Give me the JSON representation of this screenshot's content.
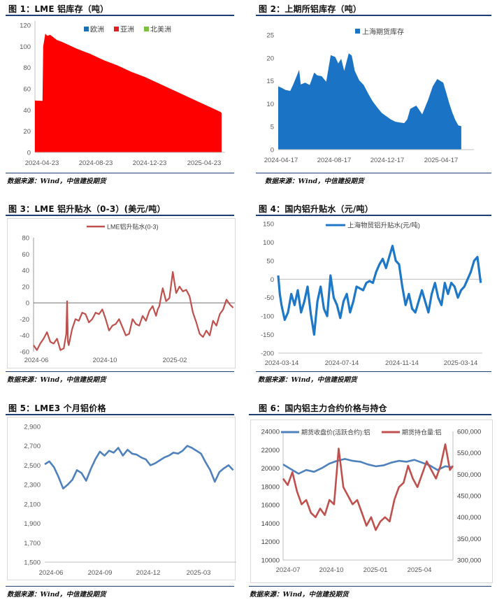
{
  "figures": {
    "fig1": {
      "title": "图 1：LME 铝库存（吨）",
      "source": "数据来源：Wind，中信建投期货"
    },
    "fig2": {
      "title": "图 2：上期所铝库存（吨）",
      "source": "数据来源：Wind，中信建投期货"
    },
    "fig3": {
      "title": "图 3：LME 铝升贴水（0-3）(美元/吨）",
      "source": "数据来源：Wind，中信建投期货"
    },
    "fig4": {
      "title": "图 4：国内铝升贴水（元/吨）",
      "source": "数据来源：Wind，中信建投期货"
    },
    "fig5": {
      "title": "图 5：LME3 个月铝价格",
      "source": "数据来源：Wind，中信建投期货"
    },
    "fig6": {
      "title": "图 6：国内铝主力合约价格与持仓",
      "source": "数据来源：Wind，中信建投期货"
    }
  },
  "chart_data": [
    {
      "id": "fig1",
      "type": "area",
      "title": "LME 铝库存（吨）",
      "legend": [
        "欧洲",
        "亚洲",
        "北美洲"
      ],
      "legend_colors": {
        "欧洲": "#1f6fb5",
        "亚洲": "#e02020",
        "北美洲": "#7cc242"
      },
      "yticks": [
        0,
        20,
        40,
        60,
        80,
        100,
        120
      ],
      "ylim": [
        0,
        120
      ],
      "xticks": [
        "2024-04-23",
        "2024-08-23",
        "2024-12-23",
        "2025-04-23"
      ],
      "xlim": [
        0,
        13.6
      ],
      "series": [
        {
          "name": "亚洲",
          "color": "#ff0000",
          "x": [
            0,
            0.55,
            0.6,
            0.75,
            0.9,
            1.1,
            1.3,
            1.6,
            2,
            2.5,
            3,
            4,
            5,
            6,
            7,
            8,
            9,
            10,
            11,
            12,
            13,
            13.5,
            13.55
          ],
          "values": [
            49,
            48.5,
            100,
            112,
            110,
            111,
            109,
            106,
            104,
            101,
            98,
            93,
            87,
            82,
            76,
            71,
            65,
            59,
            53,
            47,
            41,
            38,
            37
          ]
        }
      ]
    },
    {
      "id": "fig2",
      "type": "area",
      "title": "上期所铝库存（吨）",
      "legend": [
        "上海期货库存"
      ],
      "legend_colors": {
        "上海期货库存": "#1a73c5"
      },
      "yticks": [
        0,
        5,
        10,
        15,
        20,
        25
      ],
      "ylim": [
        0,
        25
      ],
      "xticks": [
        "2024-04-17",
        "2024-08-17",
        "2024-12-17",
        "2025-04-17"
      ],
      "xlim": [
        0,
        12.3
      ],
      "series": [
        {
          "name": "上海期货库存",
          "color": "#1a73c5",
          "x": [
            0,
            0.2,
            0.5,
            0.8,
            1.0,
            1.2,
            1.4,
            1.5,
            1.8,
            2.1,
            2.4,
            2.6,
            2.9,
            3.2,
            3.5,
            3.8,
            4,
            4.2,
            4.4,
            4.7,
            4.9,
            5.1,
            5.4,
            5.7,
            6,
            6.3,
            6.6,
            6.9,
            7.2,
            7.5,
            7.8,
            8.1,
            8.4,
            8.6,
            8.8,
            9.2,
            9.6,
            10,
            10.3,
            10.6,
            11,
            11.2,
            11.4,
            11.6,
            11.8,
            12,
            12.2
          ],
          "values": [
            13.8,
            13.5,
            13,
            12.8,
            14.2,
            15.8,
            17.4,
            14.2,
            14.6,
            14.1,
            16.8,
            16.2,
            16,
            14.8,
            20.6,
            20.2,
            18.8,
            19.8,
            17.2,
            21,
            20.5,
            17.2,
            15.1,
            14.1,
            12.2,
            10.5,
            9.2,
            8,
            7.3,
            6.6,
            6.1,
            5.9,
            5.8,
            6.6,
            8.9,
            9.6,
            7.7,
            10.9,
            13.8,
            15.4,
            14.6,
            12.4,
            10.1,
            8.1,
            6.5,
            5.3,
            5.1
          ]
        }
      ]
    },
    {
      "id": "fig3",
      "type": "line",
      "title": "LME 铝升贴水（0-3）(美元/吨）",
      "legend": [
        "LME铝升贴水(0-3)"
      ],
      "legend_colors": {
        "LME铝升贴水(0-3)": "#c0504d"
      },
      "yticks": [
        -60,
        -40,
        -20,
        0,
        20,
        40,
        60,
        80
      ],
      "ylim": [
        -60,
        80
      ],
      "xticks": [
        "2024-06",
        "2024-10",
        "2025-02"
      ],
      "xlim": [
        0,
        12
      ],
      "series": [
        {
          "name": "LME铝升贴水(0-3)",
          "color": "#c0504d",
          "x": [
            0,
            0.2,
            0.4,
            0.6,
            0.8,
            1.0,
            1.2,
            1.4,
            1.6,
            1.8,
            1.95,
            2.0,
            2.05,
            2.1,
            2.3,
            2.5,
            2.7,
            2.9,
            3.1,
            3.3,
            3.5,
            3.7,
            3.9,
            4.1,
            4.3,
            4.5,
            4.7,
            4.9,
            5.1,
            5.3,
            5.5,
            5.7,
            5.9,
            6.1,
            6.3,
            6.5,
            6.7,
            6.9,
            7.1,
            7.3,
            7.4,
            7.5,
            7.6,
            7.7,
            7.9,
            8.1,
            8.3,
            8.5,
            8.7,
            8.9,
            9.1,
            9.3,
            9.5,
            9.7,
            9.9,
            10.1,
            10.3,
            10.5,
            10.7,
            10.9,
            11.1,
            11.3,
            11.5,
            11.7,
            11.9
          ],
          "values": [
            -52,
            -58,
            -50,
            -44,
            -36,
            -48,
            -50,
            -44,
            -58,
            -56,
            -38,
            2,
            -48,
            -52,
            -32,
            -20,
            -22,
            -12,
            -14,
            -24,
            -20,
            -12,
            -14,
            -8,
            -20,
            -34,
            -28,
            -26,
            -20,
            -30,
            -40,
            -38,
            -20,
            -26,
            -28,
            -16,
            -22,
            -10,
            -4,
            -16,
            -8,
            -4,
            8,
            18,
            2,
            6,
            38,
            12,
            20,
            14,
            16,
            8,
            -12,
            -24,
            -38,
            -42,
            -34,
            -40,
            -22,
            -28,
            -14,
            -8,
            4,
            -2,
            -6
          ]
        }
      ]
    },
    {
      "id": "fig4",
      "type": "line",
      "title": "国内铝升贴水（元/吨）",
      "legend": [
        "上海物贸铝升贴水(元/吨)"
      ],
      "legend_colors": {
        "上海物贸铝升贴水(元/吨)": "#1f77c8"
      },
      "yticks": [
        -200,
        -150,
        -100,
        -50,
        0,
        50,
        100,
        150
      ],
      "ylim": [
        -200,
        150
      ],
      "xticks": [
        "2024-03-14",
        "2024-07-14",
        "2024-11-14",
        "2025-03-14"
      ],
      "xlim": [
        0,
        12.5
      ],
      "series": [
        {
          "name": "上海物贸铝升贴水(元/吨)",
          "color": "#1f77c8",
          "x": [
            0,
            0.1,
            0.2,
            0.4,
            0.6,
            0.8,
            1.0,
            1.2,
            1.4,
            1.6,
            1.8,
            2.0,
            2.2,
            2.4,
            2.6,
            2.8,
            3.0,
            3.2,
            3.4,
            3.6,
            3.8,
            4.0,
            4.2,
            4.4,
            4.6,
            4.8,
            5.0,
            5.2,
            5.4,
            5.6,
            5.8,
            6.0,
            6.2,
            6.4,
            6.6,
            6.8,
            7.0,
            7.2,
            7.4,
            7.6,
            7.8,
            8.0,
            8.2,
            8.4,
            8.6,
            8.8,
            9.0,
            9.2,
            9.4,
            9.6,
            9.8,
            10.0,
            10.2,
            10.4,
            10.6,
            10.8,
            11.0,
            11.2,
            11.4,
            11.6,
            11.8,
            12.0,
            12.2,
            12.4
          ],
          "values": [
            10,
            -40,
            -70,
            -110,
            -90,
            -40,
            -70,
            -30,
            -90,
            -60,
            -20,
            -95,
            -150,
            -60,
            -20,
            -80,
            -100,
            10,
            -50,
            -70,
            -105,
            -60,
            -40,
            -90,
            -60,
            -20,
            -25,
            -30,
            -10,
            -5,
            -10,
            20,
            40,
            55,
            30,
            60,
            90,
            50,
            40,
            -20,
            -70,
            -40,
            -80,
            -90,
            -60,
            -30,
            -60,
            -90,
            -40,
            -10,
            -50,
            -70,
            -10,
            -40,
            -10,
            -20,
            -50,
            -30,
            -20,
            0,
            20,
            50,
            60,
            -10
          ]
        }
      ]
    },
    {
      "id": "fig5",
      "type": "line",
      "title": "LME3 个月铝价格",
      "yticks": [
        "1,500",
        "1,700",
        "1,900",
        "2,100",
        "2,300",
        "2,500",
        "2,700",
        "2,900"
      ],
      "ylim": [
        1500,
        2900
      ],
      "xticks": [
        "2024-06",
        "2024-09",
        "2024-12",
        "2025-03"
      ],
      "xlim": [
        0,
        12.5
      ],
      "series": [
        {
          "name": "LME3个月铝价格",
          "color": "#4f81bd",
          "x": [
            0,
            0.3,
            0.6,
            0.9,
            1.2,
            1.5,
            1.8,
            2.1,
            2.4,
            2.7,
            3.0,
            3.3,
            3.6,
            3.9,
            4.2,
            4.5,
            4.8,
            5.1,
            5.4,
            5.7,
            6.0,
            6.3,
            6.6,
            6.9,
            7.2,
            7.5,
            7.8,
            8.1,
            8.4,
            8.7,
            9.0,
            9.3,
            9.6,
            9.9,
            10.2,
            10.5,
            10.8,
            11.1,
            11.4,
            11.7,
            12.0,
            12.3
          ],
          "values": [
            2510,
            2540,
            2480,
            2380,
            2260,
            2300,
            2350,
            2450,
            2420,
            2340,
            2460,
            2560,
            2640,
            2600,
            2650,
            2630,
            2680,
            2600,
            2660,
            2620,
            2610,
            2580,
            2560,
            2500,
            2520,
            2550,
            2580,
            2600,
            2630,
            2620,
            2650,
            2700,
            2680,
            2650,
            2620,
            2530,
            2450,
            2330,
            2430,
            2470,
            2500,
            2450
          ]
        }
      ]
    },
    {
      "id": "fig6",
      "type": "line",
      "title": "国内铝主力合约价格与持仓",
      "legend": [
        "期货收盘价(活跃合约):铝",
        "期货持仓量:铝"
      ],
      "legend_colors": {
        "期货收盘价(活跃合约):铝": "#4f81bd",
        "期货持仓量:铝": "#c0504d"
      },
      "yticks_left": [
        10000,
        12000,
        14000,
        16000,
        18000,
        20000,
        22000,
        24000
      ],
      "ylim_left": [
        10000,
        24000
      ],
      "yticks_right": [
        "300,000",
        "350,000",
        "400,000",
        "450,000",
        "500,000",
        "550,000",
        "600,000"
      ],
      "ylim_right": [
        300000,
        600000
      ],
      "xticks": [
        "2024-07",
        "2024-10",
        "2025-01",
        "2025-04"
      ],
      "xlim": [
        0,
        11
      ],
      "series": [
        {
          "name": "期货收盘价(活跃合约):铝",
          "axis": "left",
          "color": "#4f81bd",
          "x": [
            0,
            0.5,
            1,
            1.5,
            2,
            2.5,
            3,
            3.5,
            4,
            4.5,
            5,
            5.5,
            6,
            6.5,
            7,
            7.5,
            8,
            8.5,
            9,
            9.5,
            10,
            10.5,
            11
          ],
          "values": [
            20400,
            19900,
            19400,
            19800,
            19600,
            20000,
            20500,
            20800,
            21000,
            20800,
            20700,
            20400,
            20200,
            20300,
            20600,
            20800,
            20700,
            20900,
            20600,
            20300,
            19800,
            20200,
            20100
          ]
        },
        {
          "name": "期货持仓量:铝",
          "axis": "right",
          "color": "#c0504d",
          "x": [
            0,
            0.3,
            0.6,
            0.9,
            1.2,
            1.5,
            1.8,
            2.1,
            2.4,
            2.7,
            3.0,
            3.3,
            3.6,
            3.9,
            4.2,
            4.5,
            4.8,
            5.1,
            5.4,
            5.7,
            6.0,
            6.3,
            6.6,
            6.9,
            7.2,
            7.5,
            7.8,
            8.1,
            8.4,
            8.7,
            9.0,
            9.3,
            9.6,
            9.9,
            10.2,
            10.5,
            10.8,
            11
          ],
          "values": [
            490000,
            475000,
            505000,
            460000,
            430000,
            440000,
            410000,
            400000,
            420000,
            405000,
            440000,
            430000,
            560000,
            470000,
            450000,
            430000,
            440000,
            410000,
            380000,
            400000,
            370000,
            390000,
            400000,
            390000,
            440000,
            470000,
            480000,
            520000,
            490000,
            470000,
            500000,
            530000,
            510000,
            490000,
            520000,
            570000,
            510000,
            520000
          ]
        }
      ]
    }
  ]
}
